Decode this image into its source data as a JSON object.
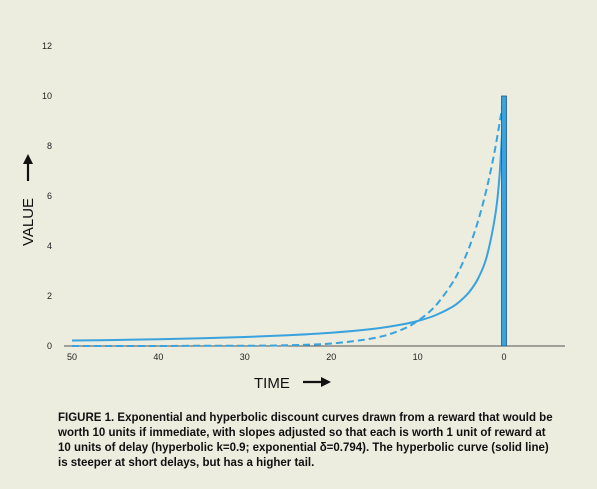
{
  "chart_data": {
    "type": "line",
    "xlabel": "TIME",
    "ylabel": "VALUE",
    "x_ticks": [
      "50",
      "40",
      "30",
      "20",
      "10",
      "0"
    ],
    "y_ticks": [
      "0",
      "2",
      "4",
      "6",
      "8",
      "10",
      "12"
    ],
    "xlim": [
      55,
      -7
    ],
    "ylim": [
      0,
      12
    ],
    "reward": {
      "x": 0,
      "value": 10
    },
    "series": [
      {
        "style": "solid",
        "x": [
          50,
          45,
          40,
          35,
          30,
          25,
          20,
          15,
          12,
          10,
          8,
          6,
          5,
          4,
          3,
          2,
          1,
          0.5,
          0
        ],
        "y": [
          0.22,
          0.24,
          0.27,
          0.31,
          0.36,
          0.43,
          0.53,
          0.69,
          0.85,
          1.0,
          1.22,
          1.56,
          1.82,
          2.17,
          2.7,
          3.57,
          5.26,
          6.9,
          10.0
        ]
      },
      {
        "style": "dashed",
        "x": [
          50,
          45,
          40,
          35,
          30,
          25,
          20,
          15,
          12,
          10,
          8,
          6,
          5,
          4,
          3,
          2,
          1,
          0
        ],
        "y": [
          0.0,
          0.0,
          0.0,
          0.01,
          0.01,
          0.03,
          0.1,
          0.32,
          0.63,
          1.0,
          1.58,
          2.51,
          3.16,
          3.97,
          5.0,
          6.3,
          7.94,
          10.0
        ]
      }
    ],
    "colors": {
      "line": "#3aa2dc",
      "axis": "#555555",
      "bar_fill": "#3aa2dc",
      "bar_stroke": "#1f5a82"
    },
    "grid": false
  },
  "caption": "FIGURE 1. Exponential and hyperbolic discount curves drawn from a reward that would be worth 10 units if immediate, with slopes adjusted so that each is worth 1 unit of reward at 10 units of delay (hyperbolic k=0.9; exponential δ=0.794). The hyperbolic curve (solid line) is steeper at short delays, but has a higher tail."
}
